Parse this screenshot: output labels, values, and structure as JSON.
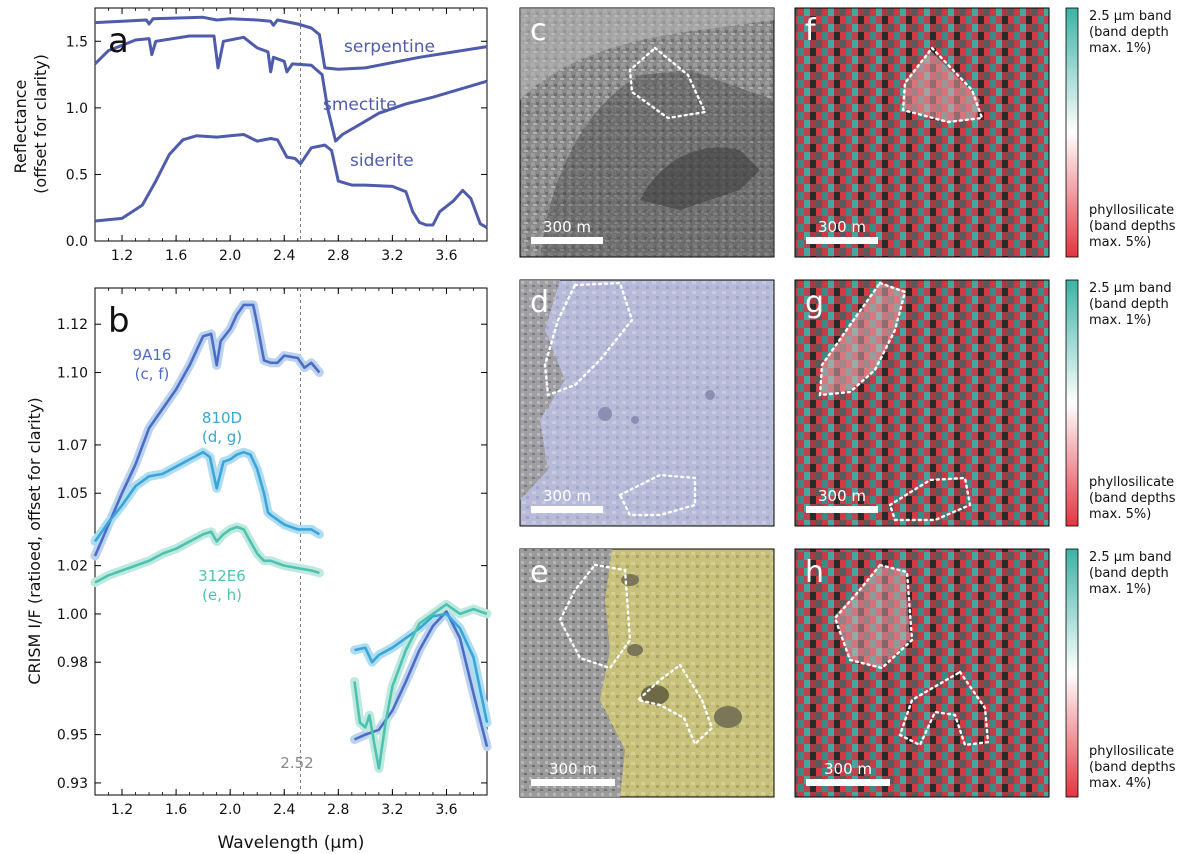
{
  "colors": {
    "mineral_line": "#4f5bab",
    "s9A16": "#4d6cc8",
    "s9A16_light": "#bcd3ee",
    "s810D": "#3aa5d8",
    "s810D_light": "#aeddf2",
    "s312E6": "#4cc3b0",
    "s312E6_light": "#bfe9df",
    "cbar_top": "#3bb3a5",
    "cbar_mid": "#ffffff",
    "cbar_bottom": "#e3353f",
    "ref_line": "#777777"
  },
  "chart_data": [
    {
      "panel": "a",
      "type": "line",
      "xlabel": "",
      "ylabel": "Reflectance\n(offset for clarity)",
      "xlim": [
        1.0,
        3.9
      ],
      "ylim": [
        0.0,
        1.75
      ],
      "xticks": [
        "1.2",
        "1.6",
        "2.0",
        "2.4",
        "2.8",
        "3.2",
        "3.6"
      ],
      "yticks": [
        "0.0",
        "0.5",
        "1.0",
        "1.5"
      ],
      "reference_line": 2.52,
      "series": [
        {
          "name": "serpentine",
          "points": [
            [
              1.0,
              1.64
            ],
            [
              1.2,
              1.65
            ],
            [
              1.38,
              1.66
            ],
            [
              1.4,
              1.63
            ],
            [
              1.43,
              1.67
            ],
            [
              1.8,
              1.68
            ],
            [
              1.9,
              1.66
            ],
            [
              2.0,
              1.67
            ],
            [
              2.2,
              1.66
            ],
            [
              2.3,
              1.65
            ],
            [
              2.32,
              1.62
            ],
            [
              2.35,
              1.66
            ],
            [
              2.5,
              1.63
            ],
            [
              2.6,
              1.6
            ],
            [
              2.66,
              1.55
            ],
            [
              2.7,
              1.3
            ],
            [
              2.8,
              1.29
            ],
            [
              3.0,
              1.3
            ],
            [
              3.4,
              1.38
            ],
            [
              3.9,
              1.46
            ]
          ]
        },
        {
          "name": "smectite",
          "points": [
            [
              1.0,
              1.33
            ],
            [
              1.1,
              1.43
            ],
            [
              1.3,
              1.51
            ],
            [
              1.4,
              1.52
            ],
            [
              1.42,
              1.4
            ],
            [
              1.45,
              1.5
            ],
            [
              1.7,
              1.54
            ],
            [
              1.88,
              1.54
            ],
            [
              1.91,
              1.3
            ],
            [
              1.95,
              1.5
            ],
            [
              2.1,
              1.53
            ],
            [
              2.2,
              1.45
            ],
            [
              2.28,
              1.42
            ],
            [
              2.3,
              1.27
            ],
            [
              2.32,
              1.38
            ],
            [
              2.4,
              1.35
            ],
            [
              2.42,
              1.27
            ],
            [
              2.46,
              1.33
            ],
            [
              2.6,
              1.32
            ],
            [
              2.68,
              1.25
            ],
            [
              2.72,
              1.0
            ],
            [
              2.78,
              0.75
            ],
            [
              2.83,
              0.8
            ],
            [
              2.95,
              0.87
            ],
            [
              3.1,
              0.96
            ],
            [
              3.3,
              1.03
            ],
            [
              3.5,
              1.08
            ],
            [
              3.7,
              1.14
            ],
            [
              3.9,
              1.2
            ]
          ]
        },
        {
          "name": "siderite",
          "points": [
            [
              1.0,
              0.15
            ],
            [
              1.2,
              0.17
            ],
            [
              1.35,
              0.27
            ],
            [
              1.45,
              0.45
            ],
            [
              1.55,
              0.65
            ],
            [
              1.65,
              0.76
            ],
            [
              1.75,
              0.79
            ],
            [
              1.9,
              0.78
            ],
            [
              2.0,
              0.79
            ],
            [
              2.1,
              0.8
            ],
            [
              2.2,
              0.75
            ],
            [
              2.3,
              0.77
            ],
            [
              2.35,
              0.76
            ],
            [
              2.42,
              0.63
            ],
            [
              2.48,
              0.62
            ],
            [
              2.52,
              0.58
            ],
            [
              2.56,
              0.64
            ],
            [
              2.6,
              0.7
            ],
            [
              2.7,
              0.72
            ],
            [
              2.75,
              0.68
            ],
            [
              2.8,
              0.45
            ],
            [
              2.9,
              0.42
            ],
            [
              3.0,
              0.42
            ],
            [
              3.2,
              0.41
            ],
            [
              3.3,
              0.37
            ],
            [
              3.35,
              0.22
            ],
            [
              3.4,
              0.14
            ],
            [
              3.45,
              0.12
            ],
            [
              3.5,
              0.12
            ],
            [
              3.55,
              0.22
            ],
            [
              3.65,
              0.3
            ],
            [
              3.72,
              0.38
            ],
            [
              3.78,
              0.32
            ],
            [
              3.85,
              0.13
            ],
            [
              3.9,
              0.1
            ]
          ]
        }
      ]
    },
    {
      "panel": "b",
      "type": "line",
      "xlabel": "Wavelength (μm)",
      "ylabel": "CRISM I/F (ratioed, offset for clarity)",
      "xlim": [
        1.0,
        3.9
      ],
      "ylim": [
        0.925,
        1.135
      ],
      "xticks": [
        "1.2",
        "1.6",
        "2.0",
        "2.4",
        "2.8",
        "3.2",
        "3.6"
      ],
      "yticks": [
        "0.93",
        "0.95",
        "0.98",
        "1.00",
        "1.02",
        "1.05",
        "1.07",
        "1.10",
        "1.12"
      ],
      "reference_line": 2.52,
      "reference_label": "2.52",
      "series": [
        {
          "name": "9A16",
          "sublabel": "(c, f)",
          "segments": [
            [
              [
                1.0,
                1.024
              ],
              [
                1.1,
                1.037
              ],
              [
                1.2,
                1.05
              ],
              [
                1.3,
                1.062
              ],
              [
                1.4,
                1.077
              ],
              [
                1.5,
                1.085
              ],
              [
                1.6,
                1.093
              ],
              [
                1.7,
                1.103
              ],
              [
                1.8,
                1.115
              ],
              [
                1.86,
                1.116
              ],
              [
                1.9,
                1.103
              ],
              [
                1.93,
                1.113
              ],
              [
                2.0,
                1.118
              ],
              [
                2.05,
                1.124
              ],
              [
                2.1,
                1.128
              ],
              [
                2.17,
                1.128
              ],
              [
                2.2,
                1.12
              ],
              [
                2.25,
                1.105
              ],
              [
                2.3,
                1.104
              ],
              [
                2.35,
                1.104
              ],
              [
                2.4,
                1.107
              ],
              [
                2.5,
                1.106
              ],
              [
                2.55,
                1.102
              ],
              [
                2.6,
                1.104
              ],
              [
                2.66,
                1.1
              ]
            ],
            [
              [
                2.92,
                0.948
              ],
              [
                3.0,
                0.95
              ],
              [
                3.1,
                0.952
              ],
              [
                3.2,
                0.96
              ],
              [
                3.3,
                0.972
              ],
              [
                3.4,
                0.985
              ],
              [
                3.5,
                0.995
              ],
              [
                3.6,
                1.001
              ],
              [
                3.7,
                0.99
              ],
              [
                3.8,
                0.967
              ],
              [
                3.9,
                0.945
              ]
            ]
          ]
        },
        {
          "name": "810D",
          "sublabel": "(d, g)",
          "segments": [
            [
              [
                1.0,
                1.03
              ],
              [
                1.1,
                1.038
              ],
              [
                1.2,
                1.045
              ],
              [
                1.3,
                1.053
              ],
              [
                1.4,
                1.057
              ],
              [
                1.5,
                1.058
              ],
              [
                1.6,
                1.061
              ],
              [
                1.7,
                1.064
              ],
              [
                1.8,
                1.067
              ],
              [
                1.85,
                1.065
              ],
              [
                1.9,
                1.052
              ],
              [
                1.95,
                1.063
              ],
              [
                2.0,
                1.064
              ],
              [
                2.05,
                1.066
              ],
              [
                2.1,
                1.067
              ],
              [
                2.15,
                1.066
              ],
              [
                2.2,
                1.06
              ],
              [
                2.25,
                1.05
              ],
              [
                2.28,
                1.042
              ],
              [
                2.3,
                1.041
              ],
              [
                2.4,
                1.037
              ],
              [
                2.5,
                1.035
              ],
              [
                2.6,
                1.035
              ],
              [
                2.66,
                1.033
              ]
            ],
            [
              [
                2.92,
                0.985
              ],
              [
                3.0,
                0.986
              ],
              [
                3.05,
                0.98
              ],
              [
                3.1,
                0.983
              ],
              [
                3.2,
                0.986
              ],
              [
                3.3,
                0.99
              ],
              [
                3.4,
                0.994
              ],
              [
                3.5,
                0.999
              ],
              [
                3.6,
                1.0
              ],
              [
                3.7,
                0.994
              ],
              [
                3.8,
                0.982
              ],
              [
                3.9,
                0.955
              ]
            ]
          ]
        },
        {
          "name": "312E6",
          "sublabel": "(e, h)",
          "segments": [
            [
              [
                1.0,
                1.013
              ],
              [
                1.1,
                1.016
              ],
              [
                1.2,
                1.018
              ],
              [
                1.3,
                1.02
              ],
              [
                1.4,
                1.022
              ],
              [
                1.5,
                1.025
              ],
              [
                1.6,
                1.027
              ],
              [
                1.7,
                1.03
              ],
              [
                1.8,
                1.033
              ],
              [
                1.86,
                1.034
              ],
              [
                1.9,
                1.03
              ],
              [
                1.95,
                1.033
              ],
              [
                2.0,
                1.035
              ],
              [
                2.05,
                1.036
              ],
              [
                2.1,
                1.035
              ],
              [
                2.15,
                1.03
              ],
              [
                2.2,
                1.025
              ],
              [
                2.25,
                1.022
              ],
              [
                2.3,
                1.022
              ],
              [
                2.4,
                1.02
              ],
              [
                2.5,
                1.019
              ],
              [
                2.6,
                1.018
              ],
              [
                2.66,
                1.017
              ]
            ],
            [
              [
                2.92,
                0.972
              ],
              [
                2.96,
                0.955
              ],
              [
                3.0,
                0.953
              ],
              [
                3.03,
                0.958
              ],
              [
                3.07,
                0.945
              ],
              [
                3.1,
                0.936
              ],
              [
                3.15,
                0.955
              ],
              [
                3.2,
                0.97
              ],
              [
                3.3,
                0.985
              ],
              [
                3.4,
                0.996
              ],
              [
                3.5,
                1.0
              ],
              [
                3.6,
                1.004
              ],
              [
                3.7,
                1.0
              ],
              [
                3.8,
                1.002
              ],
              [
                3.9,
                1.0
              ]
            ]
          ]
        }
      ]
    }
  ],
  "panel_labels": {
    "a": "a",
    "b": "b",
    "c": "c",
    "d": "d",
    "e": "e",
    "f": "f",
    "g": "g",
    "h": "h"
  },
  "scale_bar": "300 m",
  "colorbars": [
    {
      "top": "2.5 μm band\n(band depth\nmax. 1%)",
      "bottom": "phyllosilicate\n(band depths\nmax. 5%)"
    },
    {
      "top": "2.5 μm band\n(band depth\nmax. 1%)",
      "bottom": "phyllosilicate\n(band depths\nmax. 5%)"
    },
    {
      "top": "2.5 μm band\n(band depth\nmax. 1%)",
      "bottom": "phyllosilicate\n(band depths\nmax. 4%)"
    }
  ]
}
